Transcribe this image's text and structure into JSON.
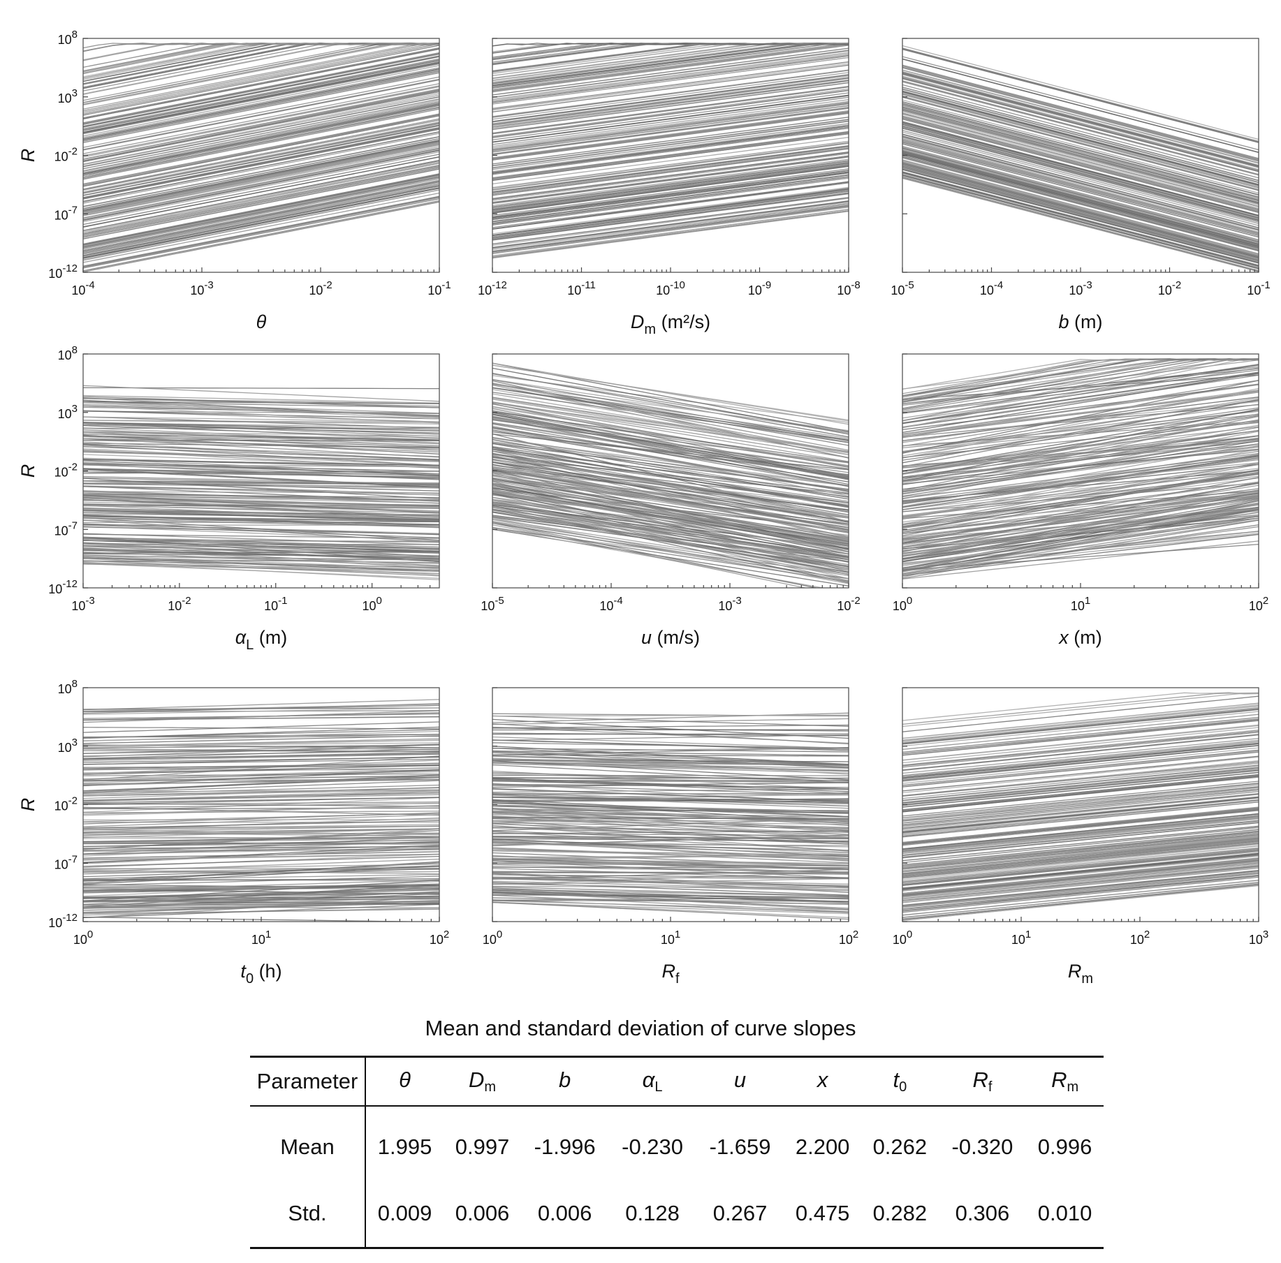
{
  "colors": {
    "curve": "#7a7a7a",
    "frame": "#555555",
    "text": "#111111"
  },
  "chart_data": [
    {
      "type": "line",
      "id": "theta",
      "x_scale": "log",
      "y_scale": "log",
      "n_curves": 200,
      "xlim": [
        0.0001,
        0.1
      ],
      "ylim": [
        1e-12,
        100000000.0
      ],
      "xticks": [
        "-4",
        "-3",
        "-2",
        "-1"
      ],
      "yticks": [
        "8",
        "3",
        "-2",
        "-7",
        "-12"
      ],
      "tick_base": "10",
      "ylabel": "R",
      "xlabel": "θ",
      "xlabel_unit": "",
      "slope_mean": 1.995,
      "slope_std": 0.009,
      "y_at_left_range": [
        -12,
        7.6
      ]
    },
    {
      "type": "line",
      "id": "Dm",
      "x_scale": "log",
      "y_scale": "log",
      "n_curves": 200,
      "xlim": [
        1e-12,
        1e-08
      ],
      "ylim": [
        1e-12,
        100000000.0
      ],
      "xticks": [
        "-12",
        "-11",
        "-10",
        "-9",
        "-8"
      ],
      "yticks": [],
      "tick_base": "10",
      "ylabel": "",
      "xlabel": "D",
      "xlabel_sub": "m",
      "xlabel_unit": "(m²/s)",
      "slope_mean": 0.997,
      "slope_std": 0.006,
      "y_at_left_range": [
        -10.8,
        7.6
      ]
    },
    {
      "type": "line",
      "id": "b",
      "x_scale": "log",
      "y_scale": "log",
      "n_curves": 200,
      "xlim": [
        1e-05,
        0.1
      ],
      "ylim": [
        1e-12,
        100000000.0
      ],
      "xticks": [
        "-5",
        "-4",
        "-3",
        "-2",
        "-1"
      ],
      "yticks": [],
      "tick_base": "10",
      "ylabel": "",
      "xlabel": "b",
      "xlabel_unit": "(m)",
      "slope_mean": -1.996,
      "slope_std": 0.006,
      "y_at_left_range": [
        -4,
        7.6
      ]
    },
    {
      "type": "line",
      "id": "alphaL",
      "x_scale": "log",
      "y_scale": "log",
      "n_curves": 200,
      "xlim": [
        0.001,
        5
      ],
      "ylim": [
        1e-12,
        100000000.0
      ],
      "xticks": [
        "-3",
        "-2",
        "-1",
        "0"
      ],
      "yticks": [
        "8",
        "3",
        "-2",
        "-7",
        "-12"
      ],
      "tick_base": "10",
      "ylabel": "R",
      "xlabel": "α",
      "xlabel_sub": "L",
      "xlabel_unit": "(m)",
      "slope_mean": -0.23,
      "slope_std": 0.128,
      "y_at_left_range": [
        -10,
        5.5
      ]
    },
    {
      "type": "line",
      "id": "u",
      "x_scale": "log",
      "y_scale": "log",
      "n_curves": 200,
      "xlim": [
        1e-05,
        0.01
      ],
      "ylim": [
        1e-12,
        100000000.0
      ],
      "xticks": [
        "-5",
        "-4",
        "-3",
        "-2"
      ],
      "yticks": [],
      "tick_base": "10",
      "ylabel": "",
      "xlabel": "u",
      "xlabel_unit": "(m/s)",
      "slope_mean": -1.659,
      "slope_std": 0.267,
      "y_at_left_range": [
        -7,
        7.4
      ]
    },
    {
      "type": "line",
      "id": "x",
      "x_scale": "log",
      "y_scale": "log",
      "n_curves": 200,
      "xlim": [
        1,
        100
      ],
      "ylim": [
        1e-12,
        100000000.0
      ],
      "xticks": [
        "0",
        "1",
        "2"
      ],
      "yticks": [],
      "tick_base": "10",
      "ylabel": "",
      "xlabel": "x",
      "xlabel_unit": "(m)",
      "slope_mean": 2.2,
      "slope_std": 0.475,
      "y_at_left_range": [
        -11.3,
        5.5
      ]
    },
    {
      "type": "line",
      "id": "t0",
      "x_scale": "log",
      "y_scale": "log",
      "n_curves": 200,
      "xlim": [
        1,
        100
      ],
      "ylim": [
        1e-12,
        100000000.0
      ],
      "xticks": [
        "0",
        "1",
        "2"
      ],
      "yticks": [
        "8",
        "3",
        "-2",
        "-7",
        "-12"
      ],
      "tick_base": "10",
      "ylabel": "R",
      "xlabel": "t",
      "xlabel_sub": "0",
      "xlabel_unit": "(h)",
      "slope_mean": 0.262,
      "slope_std": 0.282,
      "y_at_left_range": [
        -11.8,
        6.5
      ]
    },
    {
      "type": "line",
      "id": "Rf",
      "x_scale": "log",
      "y_scale": "log",
      "n_curves": 200,
      "xlim": [
        1,
        100
      ],
      "ylim": [
        1e-12,
        100000000.0
      ],
      "xticks": [
        "0",
        "1",
        "2"
      ],
      "yticks": [],
      "tick_base": "10",
      "ylabel": "",
      "xlabel": "R",
      "xlabel_sub": "f",
      "xlabel_unit": "",
      "slope_mean": -0.32,
      "slope_std": 0.306,
      "y_at_left_range": [
        -10.5,
        5.8
      ]
    },
    {
      "type": "line",
      "id": "Rm",
      "x_scale": "log",
      "y_scale": "log",
      "n_curves": 200,
      "xlim": [
        1,
        1000
      ],
      "ylim": [
        1e-12,
        100000000.0
      ],
      "xticks": [
        "0",
        "1",
        "2",
        "3"
      ],
      "yticks": [],
      "tick_base": "10",
      "ylabel": "",
      "xlabel": "R",
      "xlabel_sub": "m",
      "xlabel_unit": "",
      "slope_mean": 0.996,
      "slope_std": 0.01,
      "y_at_left_range": [
        -12.2,
        5.5
      ]
    }
  ],
  "table": {
    "title": "Mean and standard deviation of curve slopes",
    "header_first": "Parameter",
    "params": [
      {
        "sym": "θ",
        "sub": ""
      },
      {
        "sym": "D",
        "sub": "m"
      },
      {
        "sym": "b",
        "sub": ""
      },
      {
        "sym": "α",
        "sub": "L"
      },
      {
        "sym": "u",
        "sub": ""
      },
      {
        "sym": "x",
        "sub": ""
      },
      {
        "sym": "t",
        "sub": "0"
      },
      {
        "sym": "R",
        "sub": "f"
      },
      {
        "sym": "R",
        "sub": "m"
      }
    ],
    "rows": [
      {
        "label": "Mean",
        "values": [
          "1.995",
          "0.997",
          "-1.996",
          "-0.230",
          "-1.659",
          "2.200",
          "0.262",
          "-0.320",
          "0.996"
        ]
      },
      {
        "label": "Std.",
        "values": [
          "0.009",
          "0.006",
          "0.006",
          "0.128",
          "0.267",
          "0.475",
          "0.282",
          "0.306",
          "0.010"
        ]
      }
    ]
  }
}
